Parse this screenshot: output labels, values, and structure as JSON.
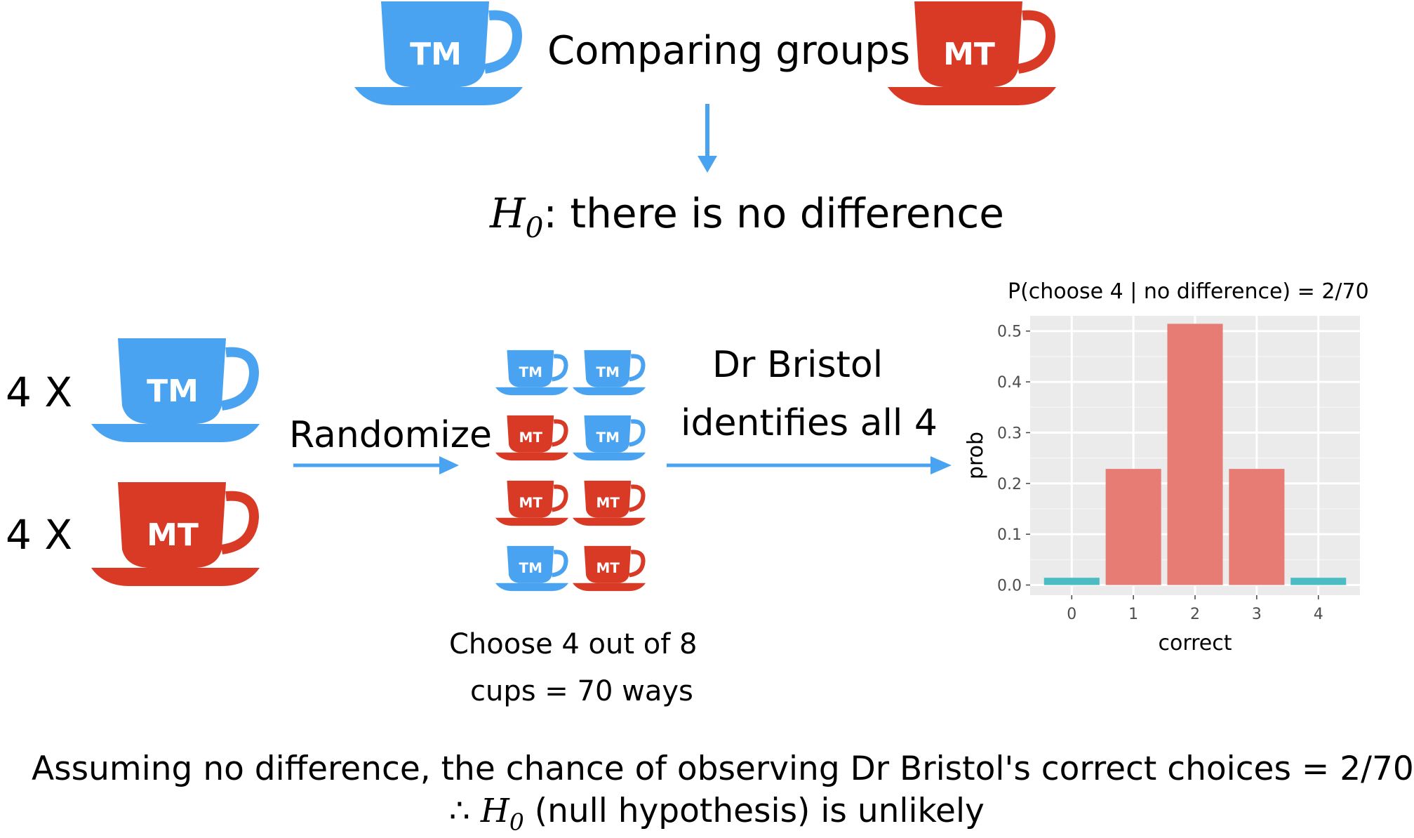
{
  "colors": {
    "tm_blue": "#4aa3f0",
    "mt_red": "#d93a26",
    "arrow_blue": "#4aa3f0",
    "bar_red": "#e67c73",
    "bar_teal": "#4cbcc4",
    "panel_bg": "#ebebeb"
  },
  "header": {
    "title": "Comparing groups",
    "left_cup_label": "TM",
    "right_cup_label": "MT"
  },
  "hypothesis": {
    "symbol": "H",
    "subscript": "0",
    "text": ": there is no difference"
  },
  "left_group": {
    "tm_count": "4 X",
    "tm_label": "TM",
    "mt_count": "4 X",
    "mt_label": "MT"
  },
  "randomize_label": "Randomize",
  "cup_grid": [
    [
      "TM",
      "TM"
    ],
    [
      "MT",
      "TM"
    ],
    [
      "MT",
      "MT"
    ],
    [
      "TM",
      "MT"
    ]
  ],
  "choose_text": {
    "line1": "Choose 4 out of 8",
    "line2": "cups = 70 ways"
  },
  "bristol_text": {
    "line1": "Dr Bristol",
    "line2": "identifies all 4"
  },
  "chart_data": {
    "type": "bar",
    "title": "P(choose 4 | no difference) = 2/70",
    "xlabel": "correct",
    "ylabel": "prob",
    "categories": [
      "0",
      "1",
      "2",
      "3",
      "4"
    ],
    "values": [
      0.0143,
      0.2286,
      0.5143,
      0.2286,
      0.0143
    ],
    "highlight": [
      "teal",
      "red",
      "red",
      "red",
      "teal"
    ],
    "yticks": [
      "0.0",
      "0.1",
      "0.2",
      "0.3",
      "0.4",
      "0.5"
    ],
    "ylim": [
      -0.02,
      0.53
    ],
    "grid": true,
    "legend": "none"
  },
  "conclusion": {
    "line1": "Assuming no difference, the chance of observing Dr Bristol's correct choices = 2/70",
    "therefore": "∴",
    "symbol": "H",
    "subscript": "0",
    "line2_rest": " (null hypothesis) is unlikely"
  }
}
